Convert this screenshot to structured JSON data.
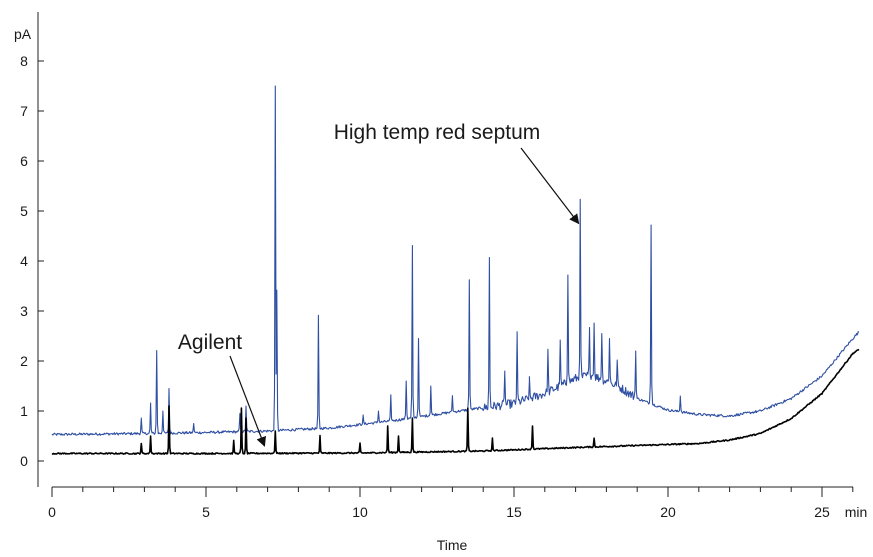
{
  "chart_data": {
    "type": "line",
    "title": "",
    "xlabel": "Time",
    "ylabel": "",
    "x_unit": "min",
    "y_unit": "pA",
    "xlim": [
      0,
      26.2
    ],
    "ylim": [
      -0.5,
      8.5
    ],
    "x_ticks": [
      "0",
      "5",
      "10",
      "15",
      "20",
      "25"
    ],
    "y_ticks": [
      "0",
      "1",
      "2",
      "3",
      "4",
      "5",
      "6",
      "7",
      "8"
    ],
    "grid": false,
    "legend": "none",
    "series": [
      {
        "color": "#2f4fa3",
        "baseline": [
          [
            0,
            0.53
          ],
          [
            3,
            0.55
          ],
          [
            5,
            0.57
          ],
          [
            7,
            0.6
          ],
          [
            9,
            0.66
          ],
          [
            11,
            0.8
          ],
          [
            13,
            0.98
          ],
          [
            15,
            1.15
          ],
          [
            16,
            1.35
          ],
          [
            17,
            1.65
          ],
          [
            17.5,
            1.72
          ],
          [
            18,
            1.6
          ],
          [
            18.5,
            1.45
          ],
          [
            19,
            1.25
          ],
          [
            20,
            1.02
          ],
          [
            21,
            0.93
          ],
          [
            22,
            0.9
          ],
          [
            23,
            1.0
          ],
          [
            24,
            1.25
          ],
          [
            25,
            1.7
          ],
          [
            26,
            2.45
          ],
          [
            26.2,
            2.58
          ]
        ],
        "peaks": [
          [
            2.9,
            0.85
          ],
          [
            3.2,
            1.15
          ],
          [
            3.4,
            2.2
          ],
          [
            3.6,
            1.0
          ],
          [
            3.8,
            1.45
          ],
          [
            4.6,
            0.75
          ],
          [
            6.1,
            0.95
          ],
          [
            6.3,
            1.1
          ],
          [
            7.25,
            7.5
          ],
          [
            7.3,
            3.4
          ],
          [
            8.65,
            2.9
          ],
          [
            10.1,
            0.9
          ],
          [
            10.6,
            1.0
          ],
          [
            11.0,
            1.3
          ],
          [
            11.5,
            1.6
          ],
          [
            11.7,
            4.3
          ],
          [
            11.9,
            2.45
          ],
          [
            12.3,
            1.5
          ],
          [
            13.0,
            1.3
          ],
          [
            13.55,
            3.62
          ],
          [
            14.2,
            4.05
          ],
          [
            14.7,
            1.8
          ],
          [
            15.1,
            2.5
          ],
          [
            15.5,
            1.6
          ],
          [
            16.1,
            2.2
          ],
          [
            16.5,
            2.35
          ],
          [
            16.75,
            3.72
          ],
          [
            17.15,
            5.15
          ],
          [
            17.45,
            2.6
          ],
          [
            17.6,
            2.75
          ],
          [
            17.85,
            2.55
          ],
          [
            18.1,
            2.45
          ],
          [
            18.35,
            2.0
          ],
          [
            18.95,
            2.2
          ],
          [
            19.45,
            4.72
          ],
          [
            20.4,
            1.3
          ]
        ]
      },
      {
        "color": "#000000",
        "baseline": [
          [
            0,
            0.15
          ],
          [
            5,
            0.15
          ],
          [
            10,
            0.16
          ],
          [
            14,
            0.2
          ],
          [
            17,
            0.27
          ],
          [
            19,
            0.31
          ],
          [
            21,
            0.35
          ],
          [
            22,
            0.42
          ],
          [
            23,
            0.55
          ],
          [
            24,
            0.85
          ],
          [
            25,
            1.35
          ],
          [
            26,
            2.15
          ],
          [
            26.2,
            2.23
          ]
        ],
        "peaks": [
          [
            2.9,
            0.35
          ],
          [
            3.2,
            0.5
          ],
          [
            3.8,
            1.1
          ],
          [
            5.9,
            0.4
          ],
          [
            6.15,
            1.05
          ],
          [
            6.3,
            0.85
          ],
          [
            7.25,
            0.6
          ],
          [
            8.7,
            0.5
          ],
          [
            10.0,
            0.35
          ],
          [
            10.9,
            0.7
          ],
          [
            11.25,
            0.5
          ],
          [
            11.7,
            0.85
          ],
          [
            13.5,
            1.05
          ],
          [
            14.3,
            0.45
          ],
          [
            15.6,
            0.7
          ],
          [
            17.6,
            0.45
          ]
        ]
      }
    ],
    "annotations": [
      {
        "text": "High temp red septum",
        "point_x": 17.1,
        "point_y": 4.75
      },
      {
        "text": "Agilent",
        "point_x": 6.9,
        "point_y": 0.3
      }
    ]
  }
}
